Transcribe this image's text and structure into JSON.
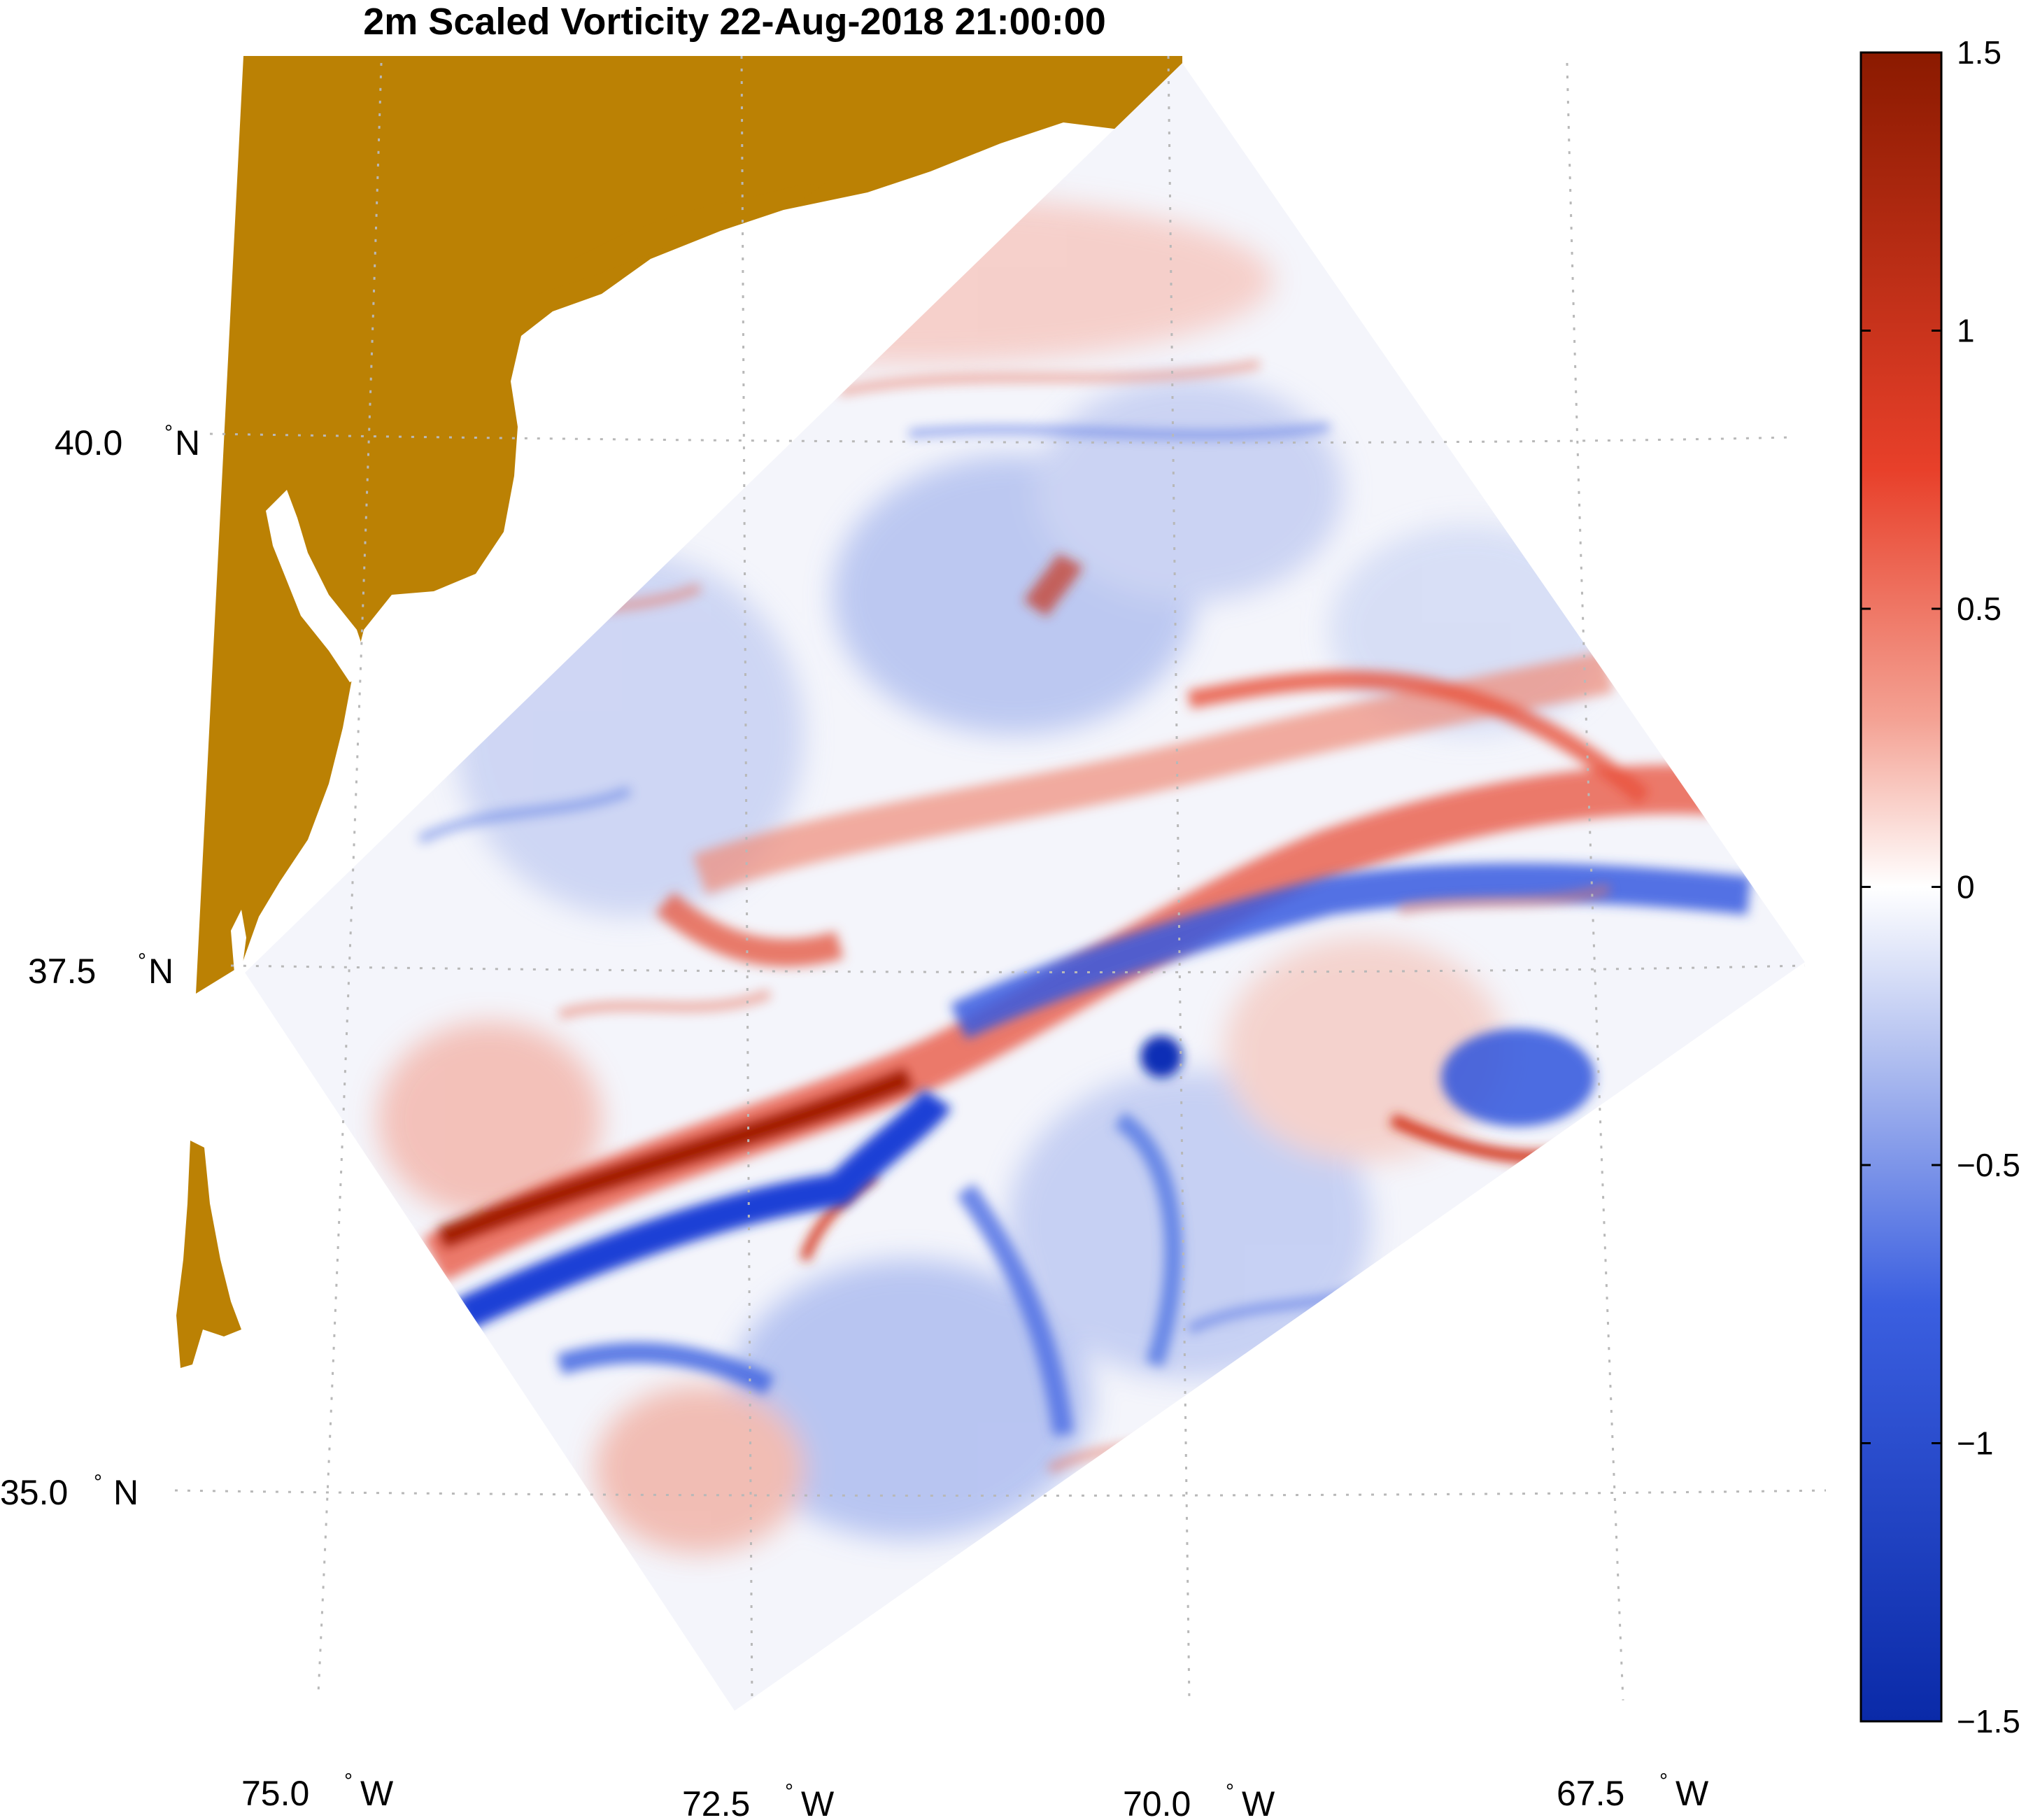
{
  "title": "2m Scaled Vorticity  22-Aug-2018 21:00:00",
  "colors": {
    "land": "#bb8104",
    "positive_max": "#8b1a00",
    "positive_mid": "#e8402a",
    "zero": "#ffffff",
    "negative_mid": "#3b5fe0",
    "negative_max": "#0a2aa8"
  },
  "latitude_labels": [
    {
      "value": "40.0",
      "deg": "°",
      "hem": "N"
    },
    {
      "value": "37.5",
      "deg": "°",
      "hem": "N"
    },
    {
      "value": "35.0",
      "deg": "°",
      "hem": "N"
    }
  ],
  "longitude_labels": [
    {
      "value": "75.0",
      "deg": "°",
      "hem": "W"
    },
    {
      "value": "72.5",
      "deg": "°",
      "hem": "W"
    },
    {
      "value": "70.0",
      "deg": "°",
      "hem": "W"
    },
    {
      "value": "67.5",
      "deg": "°",
      "hem": "W"
    }
  ],
  "colorbar": {
    "min": -1.5,
    "max": 1.5,
    "ticks": [
      "1.5",
      "1",
      "0.5",
      "0",
      "−0.5",
      "−1",
      "−1.5"
    ]
  }
}
